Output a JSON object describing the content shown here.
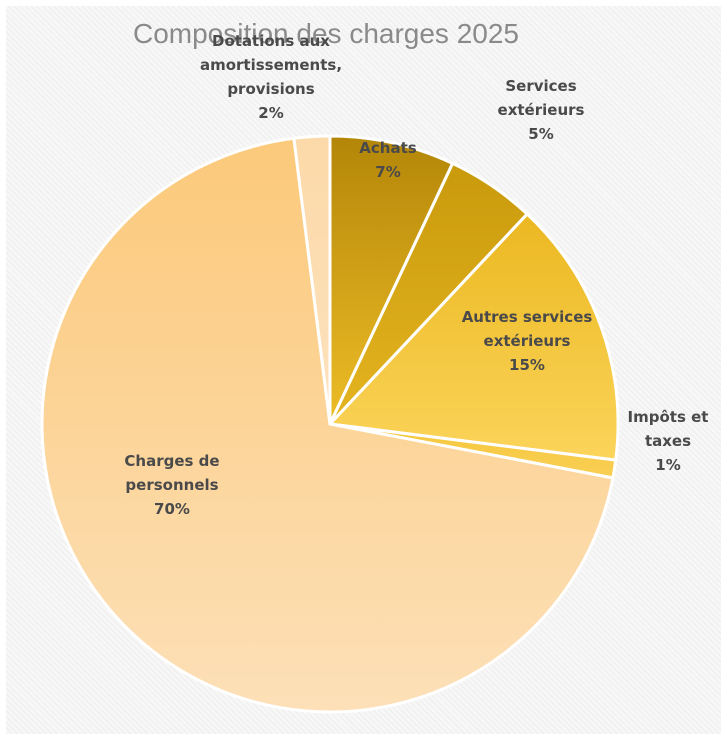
{
  "chart_data": {
    "type": "pie",
    "title": "Composition des charges 2025",
    "slices": [
      {
        "name": "Achats",
        "label_lines": [
          "Achats"
        ],
        "pct_label": "7%",
        "value": 7,
        "color": "#c1920a"
      },
      {
        "name": "Services extérieurs",
        "label_lines": [
          "Services",
          "extérieurs"
        ],
        "pct_label": "5%",
        "value": 5,
        "color": "#d3a413"
      },
      {
        "name": "Autres services extérieurs",
        "label_lines": [
          "Autres services",
          "extérieurs"
        ],
        "pct_label": "15%",
        "value": 15,
        "color": "#efc231"
      },
      {
        "name": "Impôts et taxes",
        "label_lines": [
          "Impôts et",
          "taxes"
        ],
        "pct_label": "1%",
        "value": 1,
        "color": "#f7c93f"
      },
      {
        "name": "Charges de personnels",
        "label_lines": [
          "Charges de",
          "personnels"
        ],
        "pct_label": "70%",
        "value": 70,
        "color": "#fad28c"
      },
      {
        "name": "Dotations aux amortissements, provisions",
        "label_lines": [
          "Dotations aux",
          "amortissements,",
          "provisions"
        ],
        "pct_label": "2%",
        "value": 2,
        "color": "#fcdcb0"
      }
    ],
    "legend": "none",
    "data_labels": "category name and percentage"
  }
}
